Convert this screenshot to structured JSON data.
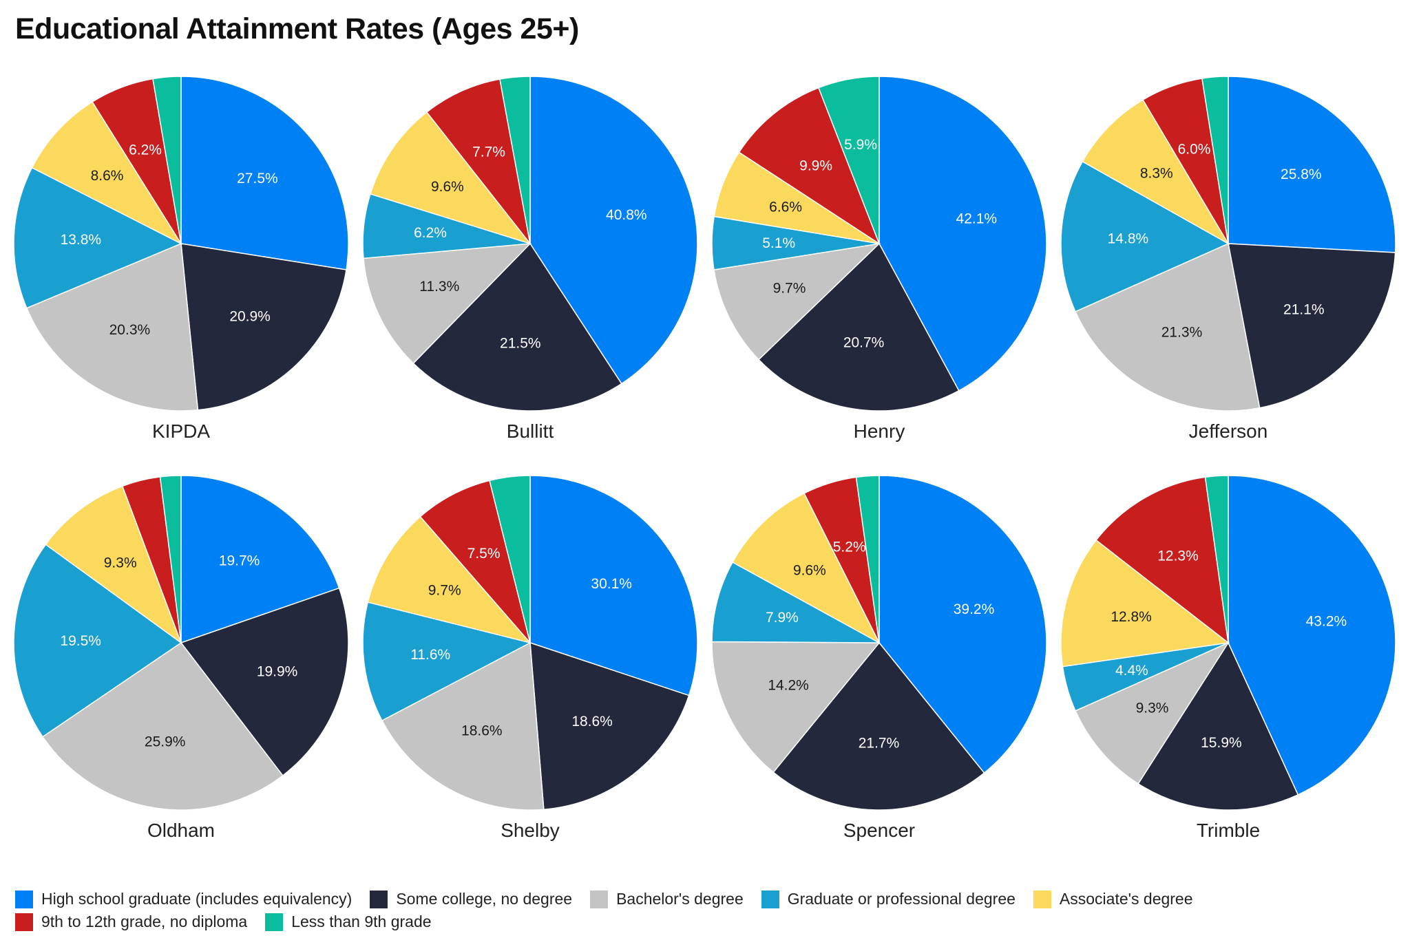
{
  "title": "Educational Attainment Rates (Ages 25+)",
  "colors": {
    "High school graduate (includes equivalency)": "#0080f5",
    "Some college, no degree": "#24283d",
    "Bachelor's degree": "#c4c4c4",
    "Graduate or professional degree": "#1a9fd1",
    "Associate's degree": "#fbd95c",
    "9th to 12th grade, no diploma": "#c81e1e",
    "Less than 9th grade": "#0bbc9d"
  },
  "legend_rows": [
    [
      "High school graduate (includes equivalency)",
      "Some college, no degree",
      "Bachelor's degree",
      "Graduate or professional degree",
      "Associate's degree"
    ],
    [
      "9th to 12th grade, no diploma",
      "Less than 9th grade"
    ]
  ],
  "chart_data": [
    {
      "type": "pie",
      "title": "KIPDA",
      "categories": [
        "High school graduate (includes equivalency)",
        "Some college, no degree",
        "Bachelor's degree",
        "Graduate or professional degree",
        "Associate's degree",
        "9th to 12th grade, no diploma",
        "Less than 9th grade"
      ],
      "values": [
        27.5,
        20.9,
        20.3,
        13.8,
        8.6,
        6.2,
        2.7
      ],
      "labels": [
        "27.5%",
        "20.9%",
        "20.3%",
        "13.8%",
        "8.6%",
        "6.2%",
        ""
      ]
    },
    {
      "type": "pie",
      "title": "Bullitt",
      "categories": [
        "High school graduate (includes equivalency)",
        "Some college, no degree",
        "Bachelor's degree",
        "Graduate or professional degree",
        "Associate's degree",
        "9th to 12th grade, no diploma",
        "Less than 9th grade"
      ],
      "values": [
        40.8,
        21.5,
        11.3,
        6.2,
        9.6,
        7.7,
        2.9
      ],
      "labels": [
        "40.8%",
        "21.5%",
        "11.3%",
        "6.2%",
        "9.6%",
        "7.7%",
        ""
      ]
    },
    {
      "type": "pie",
      "title": "Henry",
      "categories": [
        "High school graduate (includes equivalency)",
        "Some college, no degree",
        "Bachelor's degree",
        "Graduate or professional degree",
        "Associate's degree",
        "9th to 12th grade, no diploma",
        "Less than 9th grade"
      ],
      "values": [
        42.1,
        20.7,
        9.7,
        5.1,
        6.6,
        9.9,
        5.9
      ],
      "labels": [
        "42.1%",
        "20.7%",
        "9.7%",
        "5.1%",
        "6.6%",
        "9.9%",
        "5.9%"
      ]
    },
    {
      "type": "pie",
      "title": "Jefferson",
      "categories": [
        "High school graduate (includes equivalency)",
        "Some college, no degree",
        "Bachelor's degree",
        "Graduate or professional degree",
        "Associate's degree",
        "9th to 12th grade, no diploma",
        "Less than 9th grade"
      ],
      "values": [
        25.8,
        21.1,
        21.3,
        14.8,
        8.3,
        6.0,
        2.5
      ],
      "labels": [
        "25.8%",
        "21.1%",
        "21.3%",
        "14.8%",
        "8.3%",
        "6.0%",
        ""
      ]
    },
    {
      "type": "pie",
      "title": "Oldham",
      "categories": [
        "High school graduate (includes equivalency)",
        "Some college, no degree",
        "Bachelor's degree",
        "Graduate or professional degree",
        "Associate's degree",
        "9th to 12th grade, no diploma",
        "Less than 9th grade"
      ],
      "values": [
        19.7,
        19.9,
        25.9,
        19.5,
        9.3,
        3.7,
        2.0
      ],
      "labels": [
        "19.7%",
        "19.9%",
        "25.9%",
        "19.5%",
        "9.3%",
        "",
        ""
      ]
    },
    {
      "type": "pie",
      "title": "Shelby",
      "categories": [
        "High school graduate (includes equivalency)",
        "Some college, no degree",
        "Bachelor's degree",
        "Graduate or professional degree",
        "Associate's degree",
        "9th to 12th grade, no diploma",
        "Less than 9th grade"
      ],
      "values": [
        30.1,
        18.6,
        18.6,
        11.6,
        9.7,
        7.5,
        3.9
      ],
      "labels": [
        "30.1%",
        "18.6%",
        "18.6%",
        "11.6%",
        "9.7%",
        "7.5%",
        ""
      ]
    },
    {
      "type": "pie",
      "title": "Spencer",
      "categories": [
        "High school graduate (includes equivalency)",
        "Some college, no degree",
        "Bachelor's degree",
        "Graduate or professional degree",
        "Associate's degree",
        "9th to 12th grade, no diploma",
        "Less than 9th grade"
      ],
      "values": [
        39.2,
        21.7,
        14.2,
        7.9,
        9.6,
        5.2,
        2.2
      ],
      "labels": [
        "39.2%",
        "21.7%",
        "14.2%",
        "7.9%",
        "9.6%",
        "5.2%",
        ""
      ]
    },
    {
      "type": "pie",
      "title": "Trimble",
      "categories": [
        "High school graduate (includes equivalency)",
        "Some college, no degree",
        "Bachelor's degree",
        "Graduate or professional degree",
        "Associate's degree",
        "9th to 12th grade, no diploma",
        "Less than 9th grade"
      ],
      "values": [
        43.2,
        15.9,
        9.3,
        4.4,
        12.8,
        12.3,
        2.2
      ],
      "labels": [
        "43.2%",
        "15.9%",
        "9.3%",
        "4.4%",
        "12.8%",
        "12.3%",
        ""
      ]
    }
  ]
}
